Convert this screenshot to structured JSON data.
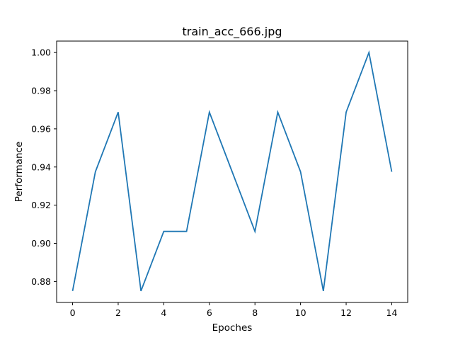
{
  "chart_data": {
    "type": "line",
    "title": "train_acc_666.jpg",
    "xlabel": "Epoches",
    "ylabel": "Performance",
    "x": [
      0,
      1,
      2,
      3,
      4,
      5,
      6,
      7,
      8,
      9,
      10,
      11,
      12,
      13,
      14
    ],
    "series": [
      {
        "values": [
          0.875,
          0.9375,
          0.96875,
          0.875,
          0.90625,
          0.90625,
          0.96875,
          0.9375,
          0.90625,
          0.96875,
          0.9375,
          0.875,
          0.96875,
          1.0,
          0.9375
        ],
        "color": "#1f77b4"
      }
    ],
    "xlim": [
      -0.7,
      14.7
    ],
    "ylim": [
      0.869,
      1.006
    ],
    "xticks": [
      0,
      2,
      4,
      6,
      8,
      10,
      12,
      14
    ],
    "xtick_labels": [
      "0",
      "2",
      "4",
      "6",
      "8",
      "10",
      "12",
      "14"
    ],
    "yticks": [
      0.88,
      0.9,
      0.92,
      0.94,
      0.96,
      0.98,
      1.0
    ],
    "ytick_labels": [
      "0.88",
      "0.90",
      "0.92",
      "0.94",
      "0.96",
      "0.98",
      "1.00"
    ],
    "grid": false,
    "legend": false
  }
}
